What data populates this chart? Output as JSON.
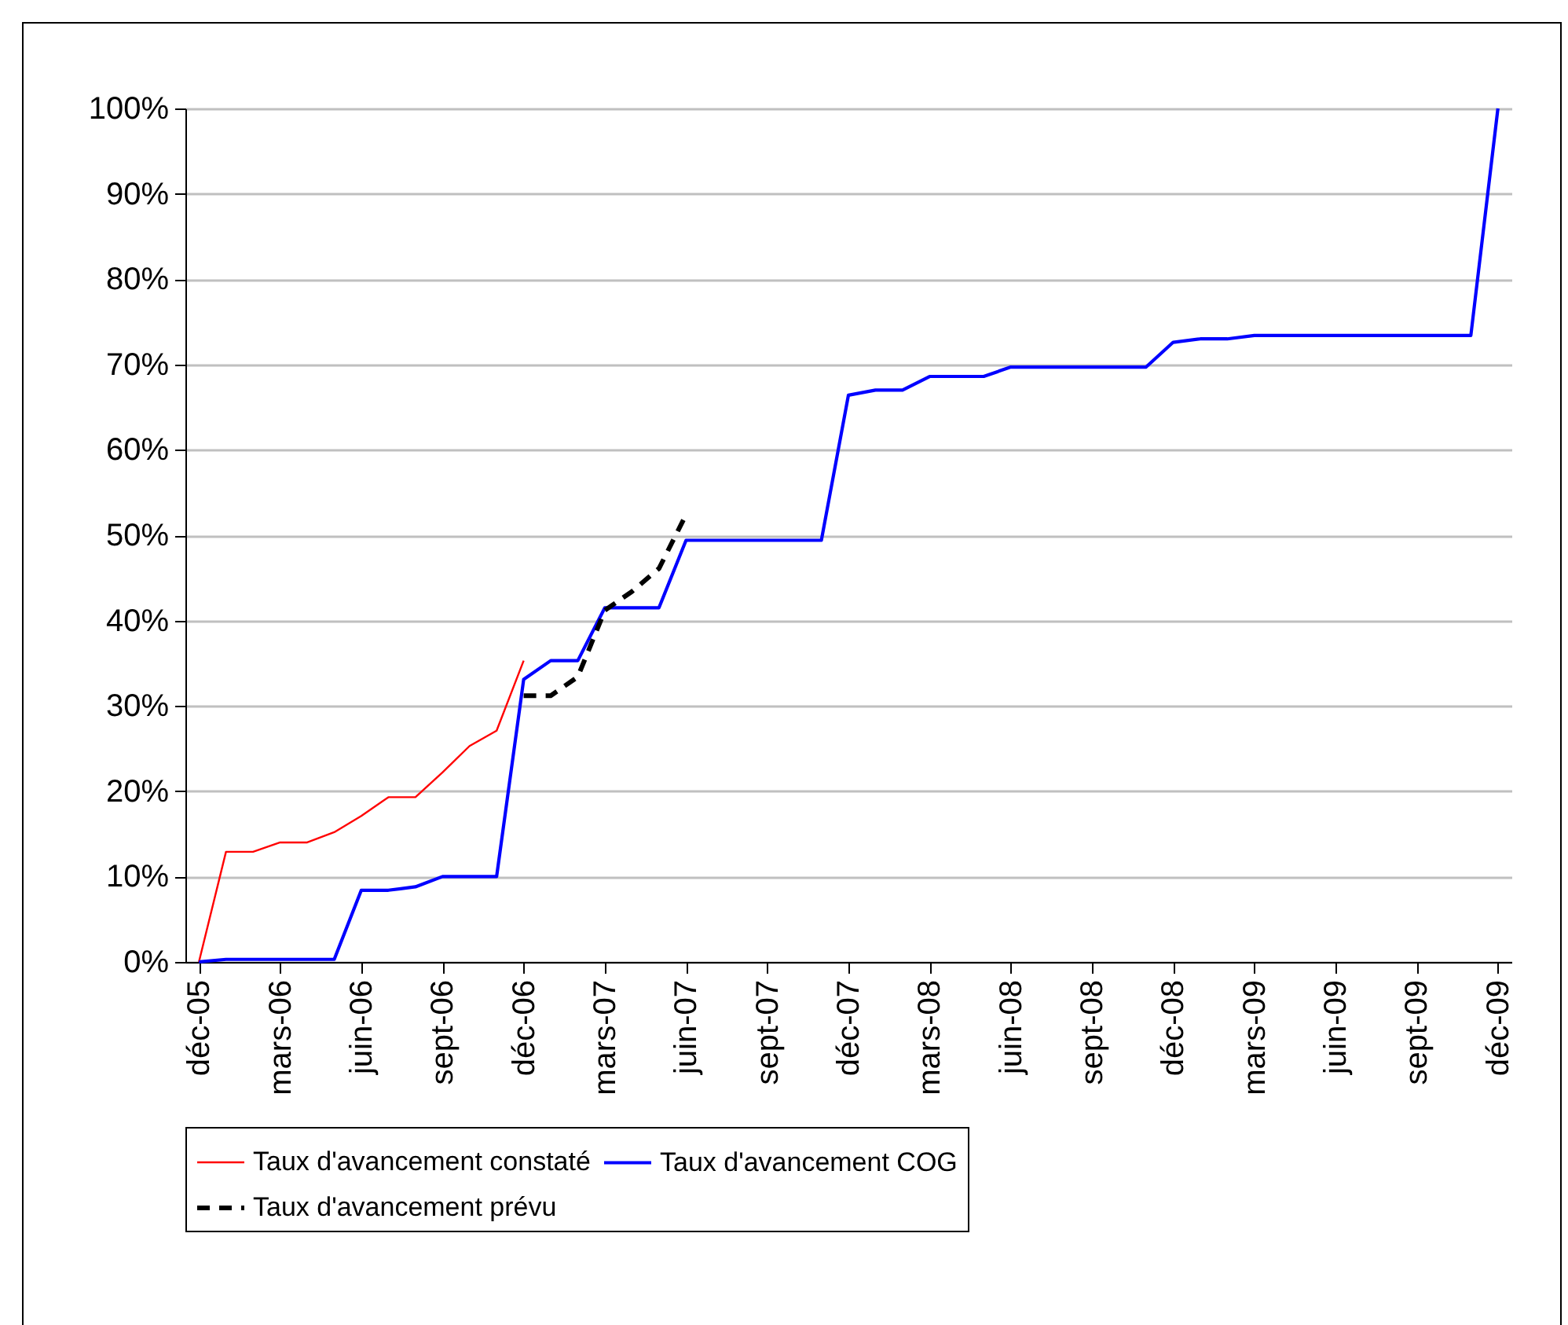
{
  "chart_data": {
    "type": "line",
    "categories": [
      "déc-05",
      null,
      null,
      "mars-06",
      null,
      null,
      "juin-06",
      null,
      null,
      "sept-06",
      null,
      null,
      "déc-06",
      null,
      null,
      "mars-07",
      null,
      null,
      "juin-07",
      null,
      null,
      "sept-07",
      null,
      null,
      "déc-07",
      null,
      null,
      "mars-08",
      null,
      null,
      "juin-08",
      null,
      null,
      "sept-08",
      null,
      null,
      "déc-08",
      null,
      null,
      "mars-09",
      null,
      null,
      "juin-09",
      null,
      null,
      "sept-09",
      null,
      null,
      "déc-09"
    ],
    "series": [
      {
        "name": "Taux d'avancement constaté",
        "color": "#ff0000",
        "values": [
          0,
          12.9,
          12.9,
          14.0,
          14.0,
          15.2,
          17.1,
          19.3,
          19.3,
          22.2,
          25.3,
          27.1,
          35.3,
          null,
          null,
          null,
          null,
          null,
          null,
          null,
          null,
          null,
          null,
          null,
          null,
          null,
          null,
          null,
          null,
          null,
          null,
          null,
          null,
          null,
          null,
          null,
          null,
          null,
          null,
          null,
          null,
          null,
          null,
          null,
          null,
          null,
          null,
          null,
          null
        ]
      },
      {
        "name": "Taux d'avancement COG",
        "color": "#0000ff",
        "values": [
          0,
          0.3,
          0.3,
          0.3,
          0.3,
          0.3,
          8.4,
          8.4,
          8.8,
          10.0,
          10.0,
          10.0,
          33.1,
          35.3,
          35.3,
          41.5,
          41.5,
          41.5,
          49.4,
          49.4,
          49.4,
          49.4,
          49.4,
          49.4,
          66.4,
          67.0,
          67.0,
          68.6,
          68.6,
          68.6,
          69.7,
          69.7,
          69.7,
          69.7,
          69.7,
          69.7,
          72.6,
          73.0,
          73.0,
          73.4,
          73.4,
          73.4,
          73.4,
          73.4,
          73.4,
          73.4,
          73.4,
          73.4,
          100
        ]
      },
      {
        "name": "Taux d'avancement prévu",
        "color": "#000000",
        "line_style": "dashed",
        "values": [
          null,
          null,
          null,
          null,
          null,
          null,
          null,
          null,
          null,
          null,
          null,
          null,
          31.2,
          31.2,
          33.4,
          41.2,
          43.4,
          46.1,
          52.4,
          null,
          null,
          null,
          null,
          null,
          null,
          null,
          null,
          null,
          null,
          null,
          null,
          null,
          null,
          null,
          null,
          null,
          null,
          null,
          null,
          null,
          null,
          null,
          null,
          null,
          null,
          null,
          null,
          null,
          null
        ]
      }
    ],
    "ylim": [
      0,
      100
    ],
    "yticks": [
      {
        "value": 0,
        "label": "0%"
      },
      {
        "value": 10,
        "label": "10%"
      },
      {
        "value": 20,
        "label": "20%"
      },
      {
        "value": 30,
        "label": "30%"
      },
      {
        "value": 40,
        "label": "40%"
      },
      {
        "value": 50,
        "label": "50%"
      },
      {
        "value": 60,
        "label": "60%"
      },
      {
        "value": 70,
        "label": "70%"
      },
      {
        "value": 80,
        "label": "80%"
      },
      {
        "value": 90,
        "label": "90%"
      },
      {
        "value": 100,
        "label": "100%"
      }
    ],
    "grid": "y",
    "legend": "bottom",
    "line_style": "solid"
  }
}
